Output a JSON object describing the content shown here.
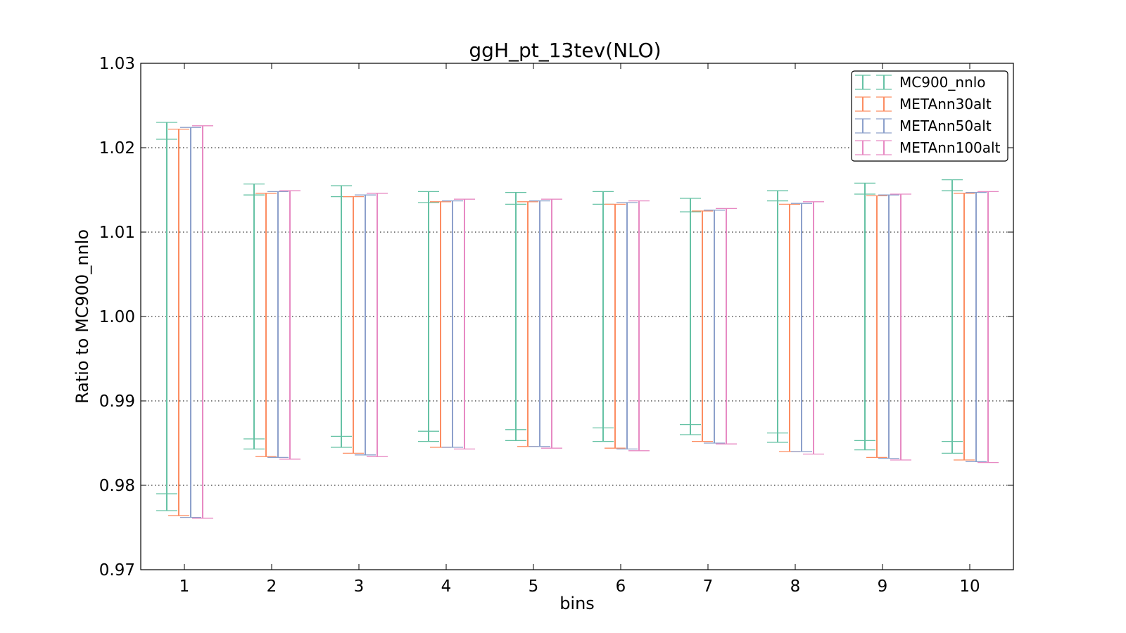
{
  "chart_data": {
    "type": "errorbar",
    "title": "ggH_pt_13tev(NLO)",
    "xlabel": "bins",
    "ylabel": "Ratio to MC900_nnlo",
    "categories": [
      "1",
      "2",
      "3",
      "4",
      "5",
      "6",
      "7",
      "8",
      "9",
      "10"
    ],
    "ylim": [
      0.97,
      1.03
    ],
    "yticks": [
      "0.97",
      "0.98",
      "0.99",
      "1.00",
      "1.01",
      "1.02",
      "1.03"
    ],
    "grid": "horizontal-dotted",
    "legend": {
      "position": "top-right"
    },
    "series": [
      {
        "name": "MC900_nnlo",
        "color": "#66c2a5",
        "outer": [
          [
            0.977,
            1.023
          ],
          [
            0.9843,
            1.0157
          ],
          [
            0.9845,
            1.0155
          ],
          [
            0.9852,
            1.0148
          ],
          [
            0.9853,
            1.0147
          ],
          [
            0.9852,
            1.0148
          ],
          [
            0.986,
            1.014
          ],
          [
            0.9851,
            1.0149
          ],
          [
            0.9842,
            1.0158
          ],
          [
            0.9838,
            1.0162
          ]
        ],
        "inner": [
          [
            0.979,
            1.021
          ],
          [
            0.9855,
            1.0144
          ],
          [
            0.9858,
            1.0142
          ],
          [
            0.9864,
            1.0135
          ],
          [
            0.9866,
            1.0133
          ],
          [
            0.9868,
            1.0133
          ],
          [
            0.9872,
            1.0124
          ],
          [
            0.9862,
            1.0137
          ],
          [
            0.9853,
            1.0145
          ],
          [
            0.9852,
            1.0149
          ]
        ]
      },
      {
        "name": "METAnn30alt",
        "color": "#fc8d62",
        "outer": [
          [
            0.9764,
            1.0222
          ],
          [
            0.9834,
            1.0146
          ],
          [
            0.9838,
            1.0142
          ],
          [
            0.9845,
            1.0136
          ],
          [
            0.9846,
            1.0136
          ],
          [
            0.9844,
            1.0133
          ],
          [
            0.9852,
            1.0125
          ],
          [
            0.984,
            1.0133
          ],
          [
            0.9833,
            1.0143
          ],
          [
            0.983,
            1.0146
          ]
        ],
        "inner": null
      },
      {
        "name": "METAnn50alt",
        "color": "#8da0cb",
        "outer": [
          [
            0.9762,
            1.0224
          ],
          [
            0.9833,
            1.0148
          ],
          [
            0.9836,
            1.0144
          ],
          [
            0.9845,
            1.0137
          ],
          [
            0.9846,
            1.0137
          ],
          [
            0.9843,
            1.0135
          ],
          [
            0.985,
            1.0126
          ],
          [
            0.984,
            1.0134
          ],
          [
            0.9832,
            1.0144
          ],
          [
            0.9828,
            1.0147
          ]
        ],
        "inner": null
      },
      {
        "name": "METAnn100alt",
        "color": "#e78ac3",
        "outer": [
          [
            0.9761,
            1.0226
          ],
          [
            0.9831,
            1.0149
          ],
          [
            0.9834,
            1.0146
          ],
          [
            0.9843,
            1.0139
          ],
          [
            0.9844,
            1.0139
          ],
          [
            0.9841,
            1.0137
          ],
          [
            0.9849,
            1.0128
          ],
          [
            0.9837,
            1.0136
          ],
          [
            0.983,
            1.0145
          ],
          [
            0.9827,
            1.0148
          ]
        ],
        "inner": null
      }
    ]
  }
}
